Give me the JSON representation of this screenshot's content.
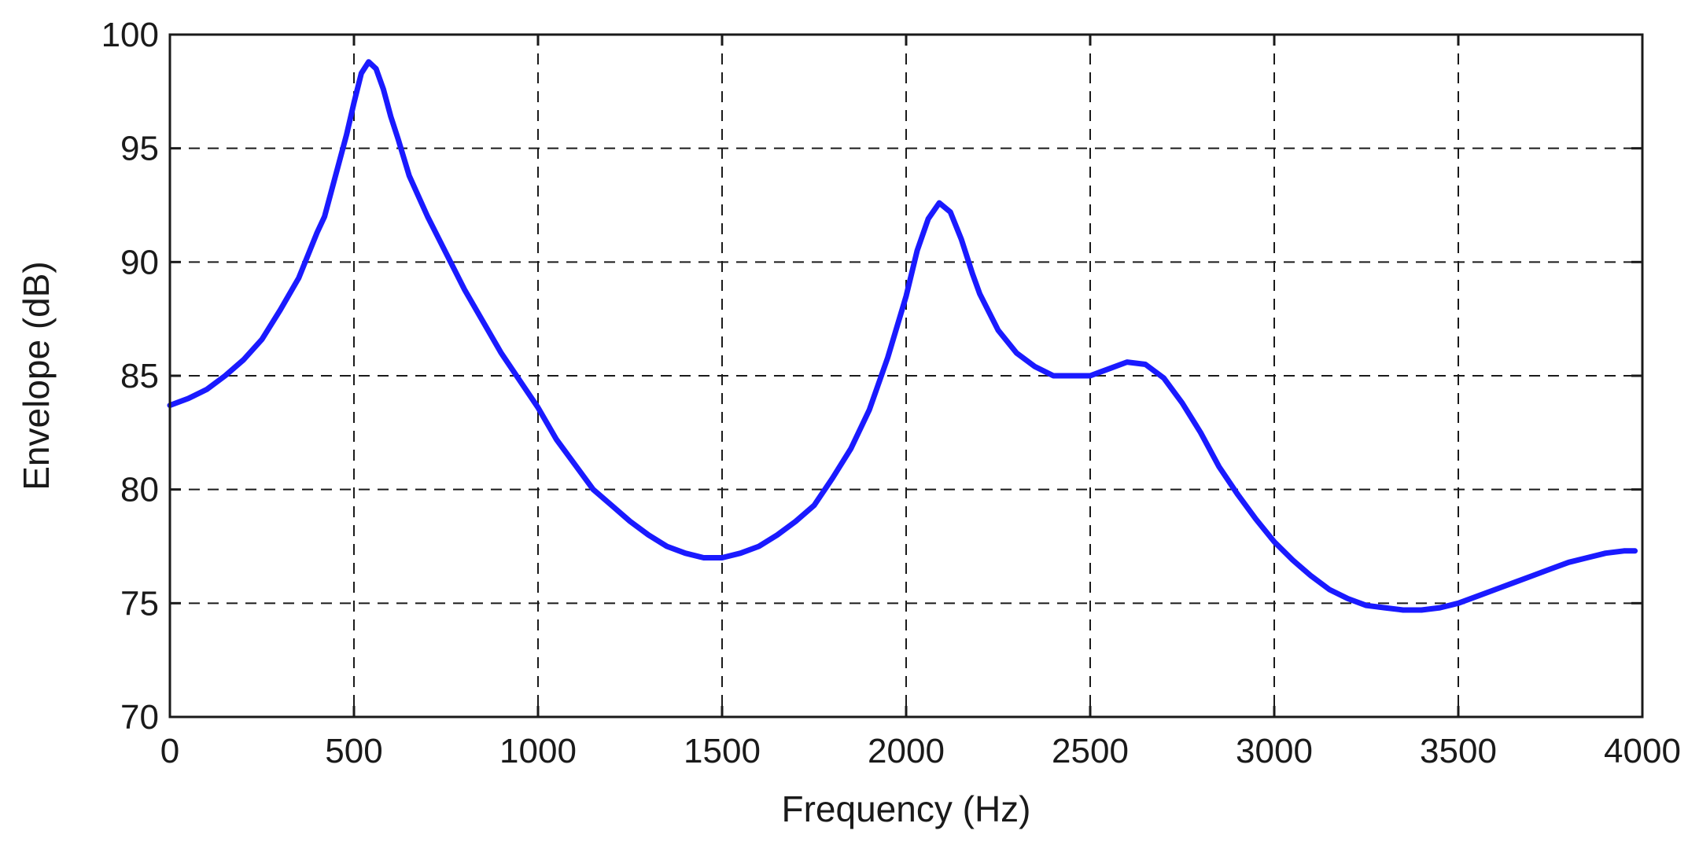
{
  "chart_data": {
    "type": "line",
    "title": "",
    "xlabel": "Frequency (Hz)",
    "ylabel": "Envelope (dB)",
    "xlim": [
      0,
      4000
    ],
    "ylim": [
      70,
      100
    ],
    "xticks": [
      0,
      500,
      1000,
      1500,
      2000,
      2500,
      3000,
      3500,
      4000
    ],
    "yticks": [
      70,
      75,
      80,
      85,
      90,
      95,
      100
    ],
    "xtick_labels": [
      "0",
      "500",
      "1000",
      "1500",
      "2000",
      "2500",
      "3000",
      "3500",
      "4000"
    ],
    "ytick_labels": [
      "70",
      "75",
      "80",
      "85",
      "90",
      "95",
      "100"
    ],
    "grid": true,
    "legend": "none",
    "colors": {
      "line": "#1a1aff",
      "axes": "#1a1a1a",
      "background": "#ffffff"
    },
    "series": [
      {
        "x": [
          0,
          50,
          100,
          150,
          200,
          250,
          300,
          350,
          400,
          420,
          450,
          480,
          500,
          520,
          540,
          560,
          580,
          600,
          620,
          650,
          700,
          750,
          800,
          850,
          900,
          950,
          1000,
          1050,
          1100,
          1150,
          1200,
          1250,
          1300,
          1350,
          1400,
          1450,
          1500,
          1550,
          1600,
          1650,
          1700,
          1750,
          1800,
          1850,
          1900,
          1950,
          2000,
          2030,
          2060,
          2090,
          2120,
          2150,
          2180,
          2200,
          2250,
          2300,
          2350,
          2400,
          2450,
          2500,
          2550,
          2600,
          2650,
          2700,
          2750,
          2800,
          2850,
          2900,
          2950,
          3000,
          3050,
          3100,
          3150,
          3200,
          3250,
          3300,
          3350,
          3400,
          3450,
          3500,
          3550,
          3600,
          3650,
          3700,
          3750,
          3800,
          3850,
          3900,
          3950,
          3980
        ],
        "values": [
          83.7,
          84.0,
          84.4,
          85.0,
          85.7,
          86.6,
          87.9,
          89.3,
          91.3,
          92.0,
          93.8,
          95.6,
          97.0,
          98.3,
          98.8,
          98.5,
          97.6,
          96.4,
          95.4,
          93.8,
          92.0,
          90.4,
          88.8,
          87.4,
          86.0,
          84.8,
          83.6,
          82.2,
          81.1,
          80.0,
          79.3,
          78.6,
          78.0,
          77.5,
          77.2,
          77.0,
          77.0,
          77.2,
          77.5,
          78.0,
          78.6,
          79.3,
          80.5,
          81.8,
          83.5,
          85.8,
          88.5,
          90.5,
          91.9,
          92.6,
          92.2,
          91.0,
          89.5,
          88.6,
          87.0,
          86.0,
          85.4,
          85.0,
          85.0,
          85.0,
          85.3,
          85.6,
          85.5,
          84.9,
          83.8,
          82.5,
          81.0,
          79.8,
          78.7,
          77.7,
          76.9,
          76.2,
          75.6,
          75.2,
          74.9,
          74.8,
          74.7,
          74.7,
          74.8,
          75.0,
          75.3,
          75.6,
          75.9,
          76.2,
          76.5,
          76.8,
          77.0,
          77.2,
          77.3,
          77.3
        ]
      }
    ]
  }
}
